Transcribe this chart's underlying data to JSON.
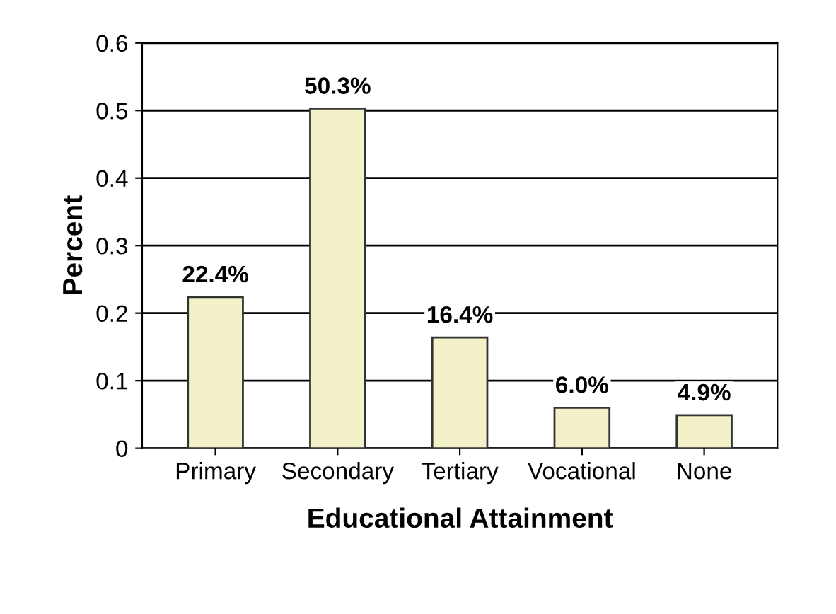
{
  "chart_data": {
    "type": "bar",
    "xlabel": "Educational Attainment",
    "ylabel": "Percent",
    "categories": [
      "Primary",
      "Secondary",
      "Tertiary",
      "Vocational",
      "None"
    ],
    "values": [
      0.224,
      0.503,
      0.164,
      0.06,
      0.049
    ],
    "value_labels": [
      "22.4%",
      "50.3%",
      "16.4%",
      "6.0%",
      "4.9%"
    ],
    "color": "#f3f1c8",
    "ylim": [
      0,
      0.6
    ],
    "yticks": [
      0,
      0.1,
      0.2,
      0.3,
      0.4,
      0.5,
      0.6
    ],
    "grid": "y"
  }
}
